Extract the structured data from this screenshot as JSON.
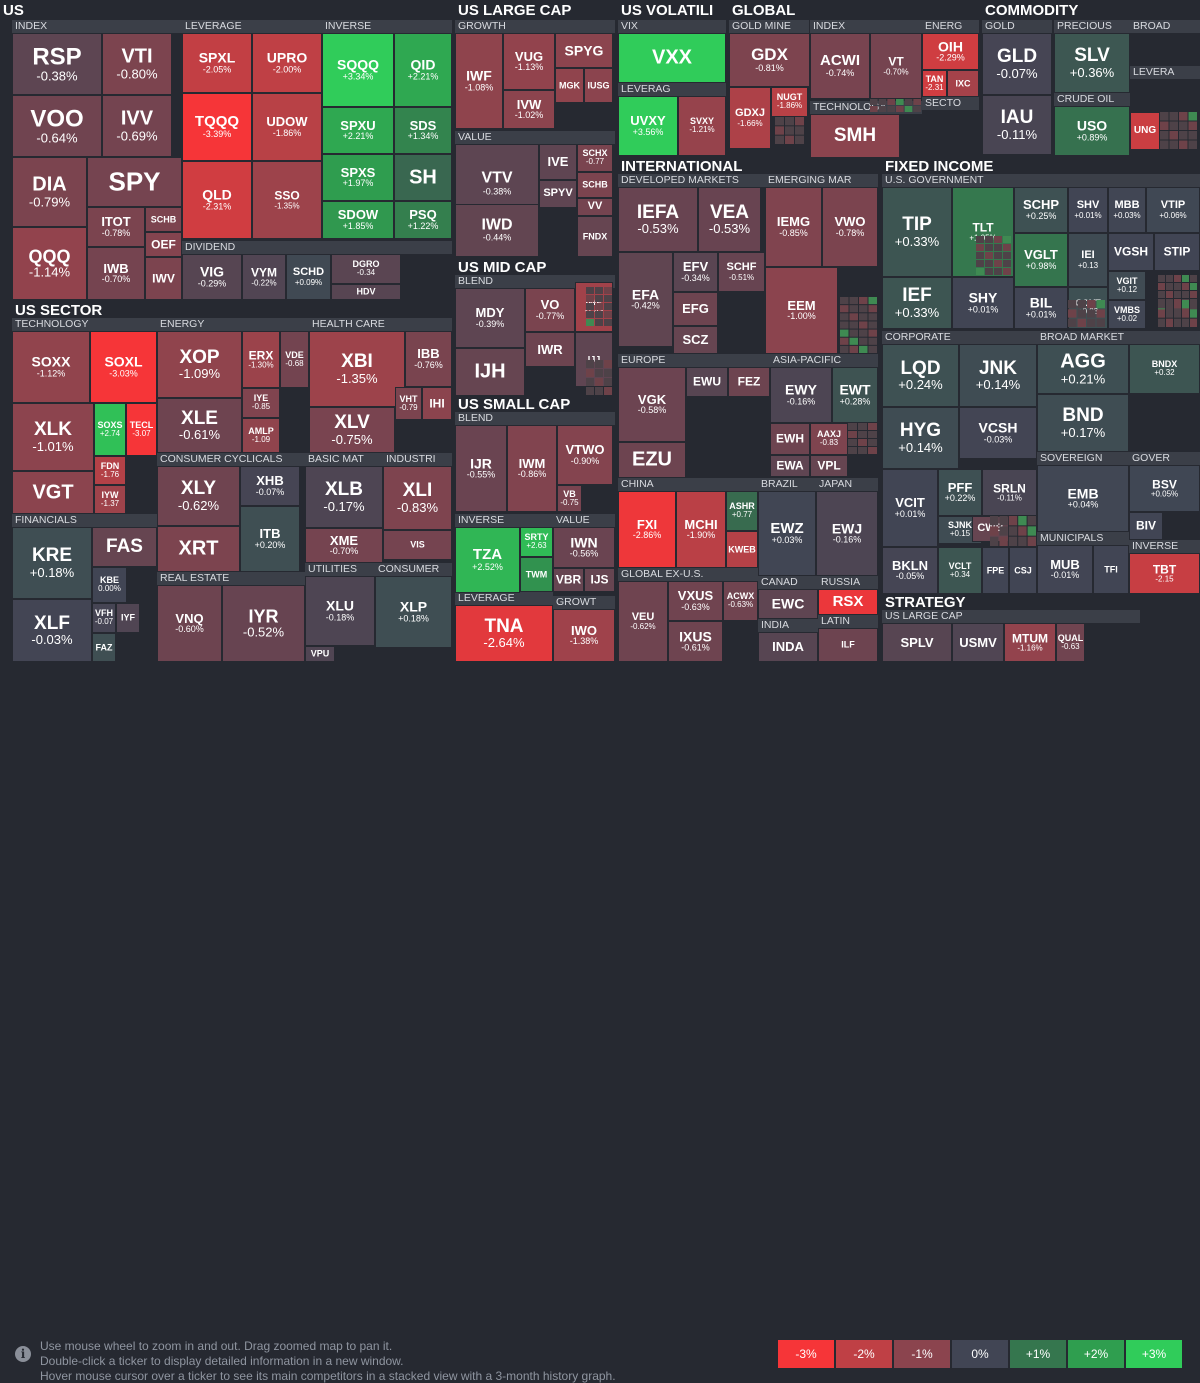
{
  "footer": {
    "help_lines": [
      "Use mouse wheel to zoom in and out. Drag zoomed map to pan it.",
      "Double-click a ticker to display detailed information in a new window.",
      "Hover mouse cursor over a ticker to see its main competitors in a stacked view with a 3-month history graph."
    ],
    "legend": [
      {
        "label": "-3%",
        "color": "#f63538"
      },
      {
        "label": "-2%",
        "color": "#bf4045"
      },
      {
        "label": "-1%",
        "color": "#8b444e"
      },
      {
        "label": "0%",
        "color": "#414554"
      },
      {
        "label": "+1%",
        "color": "#35764e"
      },
      {
        "label": "+2%",
        "color": "#2f9e4f"
      },
      {
        "label": "+3%",
        "color": "#30cc5a"
      }
    ]
  },
  "sections": [
    {
      "label": "US"
    },
    {
      "label": "US LARGE CAP"
    },
    {
      "label": "US VOLATILI"
    },
    {
      "label": "GLOBAL"
    },
    {
      "label": "COMMODITY"
    },
    {
      "label": "US SECTOR"
    },
    {
      "label": "US MID CAP"
    },
    {
      "label": "INTERNATIONAL"
    },
    {
      "label": "FIXED INCOME"
    },
    {
      "label": "US SMALL CAP"
    },
    {
      "label": "STRATEGY"
    }
  ],
  "subsections": [
    {
      "label": "INDEX"
    },
    {
      "label": "LEVERAGE"
    },
    {
      "label": "INVERSE"
    },
    {
      "label": "DIVIDEND"
    },
    {
      "label": "GROWTH"
    },
    {
      "label": "VALUE"
    },
    {
      "label": "VIX"
    },
    {
      "label": "LEVERAG"
    },
    {
      "label": "GOLD MINE"
    },
    {
      "label": "INDEX"
    },
    {
      "label": "ENERG"
    },
    {
      "label": "SECTO"
    },
    {
      "label": "TECHNOLOGY"
    },
    {
      "label": "GOLD"
    },
    {
      "label": "PRECIOUS"
    },
    {
      "label": "BROAD"
    },
    {
      "label": "LEVERA"
    },
    {
      "label": "CRUDE OIL"
    },
    {
      "label": "TECHNOLOGY"
    },
    {
      "label": "ENERGY"
    },
    {
      "label": "HEALTH CARE"
    },
    {
      "label": "FINANCIALS"
    },
    {
      "label": "CONSUMER CYCLICALS"
    },
    {
      "label": "BASIC MAT"
    },
    {
      "label": "INDUSTRI"
    },
    {
      "label": "REAL ESTATE"
    },
    {
      "label": "UTILITIES"
    },
    {
      "label": "CONSUMER"
    },
    {
      "label": "BLEND"
    },
    {
      "label": "BLEND"
    },
    {
      "label": "INVERSE"
    },
    {
      "label": "VALUE"
    },
    {
      "label": "LEVERAGE"
    },
    {
      "label": "GROWT"
    },
    {
      "label": "DEVELOPED MARKETS"
    },
    {
      "label": "EMERGING MAR"
    },
    {
      "label": "EUROPE"
    },
    {
      "label": "ASIA-PACIFIC"
    },
    {
      "label": "CHINA"
    },
    {
      "label": "BRAZIL"
    },
    {
      "label": "JAPAN"
    },
    {
      "label": "GLOBAL EX-U.S."
    },
    {
      "label": "CANAD"
    },
    {
      "label": "RUSSIA"
    },
    {
      "label": "INDIA"
    },
    {
      "label": "LATIN"
    },
    {
      "label": "U.S. GOVERNMENT"
    },
    {
      "label": "CORPORATE"
    },
    {
      "label": "BROAD MARKET"
    },
    {
      "label": "SOVEREIGN"
    },
    {
      "label": "GOVER"
    },
    {
      "label": "MUNICIPALS"
    },
    {
      "label": "INVERSE"
    },
    {
      "label": "US LARGE CAP"
    }
  ],
  "chart_data": {
    "type": "heatmap",
    "color_scale": {
      "min": -3,
      "max": 3,
      "unit": "%"
    },
    "tiles": [
      {
        "t": "RSP",
        "v": -0.38,
        "p": "-0.38%"
      },
      {
        "t": "VTI",
        "v": -0.8,
        "p": "-0.80%"
      },
      {
        "t": "VOO",
        "v": -0.64,
        "p": "-0.64%"
      },
      {
        "t": "IVV",
        "v": -0.69,
        "p": "-0.69%"
      },
      {
        "t": "DIA",
        "v": -0.79,
        "p": "-0.79%"
      },
      {
        "t": "SPY",
        "v": -0.7,
        "p": ""
      },
      {
        "t": "QQQ",
        "v": -1.14,
        "p": "-1.14%"
      },
      {
        "t": "ITOT",
        "v": -0.78,
        "p": "-0.78%"
      },
      {
        "t": "SCHB",
        "v": -0.8,
        "p": ""
      },
      {
        "t": "OEF",
        "v": -0.9,
        "p": ""
      },
      {
        "t": "IWB",
        "v": -0.7,
        "p": "-0.70%"
      },
      {
        "t": "IWV",
        "v": -0.8,
        "p": ""
      },
      {
        "t": "SPXL",
        "v": -2.05,
        "p": "-2.05%"
      },
      {
        "t": "UPRO",
        "v": -2.0,
        "p": "-2.00%"
      },
      {
        "t": "TQQQ",
        "v": -3.39,
        "p": "-3.39%"
      },
      {
        "t": "UDOW",
        "v": -1.86,
        "p": "-1.86%"
      },
      {
        "t": "QLD",
        "v": -2.31,
        "p": "-2.31%"
      },
      {
        "t": "SSO",
        "v": -1.35,
        "p": "-1.35%"
      },
      {
        "t": "SQQQ",
        "v": 3.34,
        "p": "+3.34%"
      },
      {
        "t": "QID",
        "v": 2.21,
        "p": "+2.21%"
      },
      {
        "t": "SPXU",
        "v": 2.21,
        "p": "+2.21%"
      },
      {
        "t": "SDS",
        "v": 1.34,
        "p": "+1.34%"
      },
      {
        "t": "SPXS",
        "v": 1.97,
        "p": "+1.97%"
      },
      {
        "t": "SH",
        "v": 0.7,
        "p": ""
      },
      {
        "t": "SDOW",
        "v": 1.85,
        "p": "+1.85%"
      },
      {
        "t": "PSQ",
        "v": 1.22,
        "p": "+1.22%"
      },
      {
        "t": "VIG",
        "v": -0.29,
        "p": "-0.29%"
      },
      {
        "t": "VYM",
        "v": -0.22,
        "p": "-0.22%"
      },
      {
        "t": "SCHD",
        "v": 0.09,
        "p": "+0.09%"
      },
      {
        "t": "DGRO",
        "v": -0.34,
        "p": "-0.34"
      },
      {
        "t": "HDV",
        "v": -0.3,
        "p": ""
      },
      {
        "t": "IWF",
        "v": -1.08,
        "p": "-1.08%"
      },
      {
        "t": "VUG",
        "v": -1.13,
        "p": "-1.13%"
      },
      {
        "t": "SPYG",
        "v": -1.0,
        "p": ""
      },
      {
        "t": "MGK",
        "v": -1.1,
        "p": ""
      },
      {
        "t": "IUSG",
        "v": -1.0,
        "p": ""
      },
      {
        "t": "IVW",
        "v": -1.02,
        "p": "-1.02%"
      },
      {
        "t": "VTV",
        "v": -0.38,
        "p": "-0.38%"
      },
      {
        "t": "IVE",
        "v": -0.4,
        "p": ""
      },
      {
        "t": "SCHX",
        "v": -0.77,
        "p": "-0.77"
      },
      {
        "t": "SCHB",
        "v": -0.8,
        "p": ""
      },
      {
        "t": "SPYV",
        "v": -0.4,
        "p": ""
      },
      {
        "t": "VV",
        "v": -0.7,
        "p": ""
      },
      {
        "t": "IWD",
        "v": -0.44,
        "p": "-0.44%"
      },
      {
        "t": "FNDX",
        "v": -0.5,
        "p": ""
      },
      {
        "t": "VXX",
        "v": 3.2,
        "p": ""
      },
      {
        "t": "UVXY",
        "v": 3.56,
        "p": "+3.56%"
      },
      {
        "t": "SVXY",
        "v": -1.21,
        "p": "-1.21%"
      },
      {
        "t": "GDX",
        "v": -0.81,
        "p": "-0.81%"
      },
      {
        "t": "GDXJ",
        "v": -1.66,
        "p": "-1.66%"
      },
      {
        "t": "NUGT",
        "v": -1.86,
        "p": "-1.86%"
      },
      {
        "t": "ACWI",
        "v": -0.74,
        "p": "-0.74%"
      },
      {
        "t": "VT",
        "v": -0.7,
        "p": "-0.70%"
      },
      {
        "t": "OIH",
        "v": -2.29,
        "p": "-2.29%"
      },
      {
        "t": "TAN",
        "v": -2.31,
        "p": "-2.31"
      },
      {
        "t": "IXC",
        "v": -1.5,
        "p": ""
      },
      {
        "t": "SMH",
        "v": -1.0,
        "p": ""
      },
      {
        "t": "GLD",
        "v": -0.07,
        "p": "-0.07%"
      },
      {
        "t": "IAU",
        "v": -0.11,
        "p": "-0.11%"
      },
      {
        "t": "SLV",
        "v": 0.36,
        "p": "+0.36%"
      },
      {
        "t": "USO",
        "v": 0.89,
        "p": "+0.89%"
      },
      {
        "t": "UNG",
        "v": -2.2,
        "p": ""
      },
      {
        "t": "SOXX",
        "v": -1.12,
        "p": "-1.12%"
      },
      {
        "t": "SOXL",
        "v": -3.03,
        "p": "-3.03%"
      },
      {
        "t": "XLK",
        "v": -1.01,
        "p": "-1.01%"
      },
      {
        "t": "SOXS",
        "v": 2.74,
        "p": "+2.74"
      },
      {
        "t": "TECL",
        "v": -3.07,
        "p": "-3.07"
      },
      {
        "t": "FDN",
        "v": -1.76,
        "p": "-1.76"
      },
      {
        "t": "IYW",
        "v": -1.37,
        "p": "-1.37"
      },
      {
        "t": "VGT",
        "v": -1.0,
        "p": ""
      },
      {
        "t": "XOP",
        "v": -1.09,
        "p": "-1.09%"
      },
      {
        "t": "ERX",
        "v": -1.3,
        "p": "-1.30%"
      },
      {
        "t": "VDE",
        "v": -0.68,
        "p": "-0.68"
      },
      {
        "t": "XLE",
        "v": -0.61,
        "p": "-0.61%"
      },
      {
        "t": "IYE",
        "v": -0.85,
        "p": "-0.85"
      },
      {
        "t": "AMLP",
        "v": -1.09,
        "p": "-1.09"
      },
      {
        "t": "XBI",
        "v": -1.35,
        "p": "-1.35%"
      },
      {
        "t": "IBB",
        "v": -0.76,
        "p": "-0.76%"
      },
      {
        "t": "XLV",
        "v": -0.75,
        "p": "-0.75%"
      },
      {
        "t": "VHT",
        "v": -0.79,
        "p": "-0.79"
      },
      {
        "t": "IHI",
        "v": -1.0,
        "p": ""
      },
      {
        "t": "KRE",
        "v": 0.18,
        "p": "+0.18%"
      },
      {
        "t": "FAS",
        "v": -0.5,
        "p": ""
      },
      {
        "t": "KBE",
        "v": 0.0,
        "p": "0.00%"
      },
      {
        "t": "XLF",
        "v": -0.03,
        "p": "-0.03%"
      },
      {
        "t": "VFH",
        "v": -0.07,
        "p": "-0.07"
      },
      {
        "t": "IYF",
        "v": -0.2,
        "p": ""
      },
      {
        "t": "FAZ",
        "v": 0.2,
        "p": ""
      },
      {
        "t": "XLY",
        "v": -0.62,
        "p": "-0.62%"
      },
      {
        "t": "XHB",
        "v": -0.07,
        "p": "-0.07%"
      },
      {
        "t": "XRT",
        "v": -0.8,
        "p": ""
      },
      {
        "t": "ITB",
        "v": 0.2,
        "p": "+0.20%"
      },
      {
        "t": "XLB",
        "v": -0.17,
        "p": "-0.17%"
      },
      {
        "t": "XME",
        "v": -0.7,
        "p": "-0.70%"
      },
      {
        "t": "XLI",
        "v": -0.83,
        "p": "-0.83%"
      },
      {
        "t": "VIS",
        "v": -0.7,
        "p": ""
      },
      {
        "t": "VNQ",
        "v": -0.6,
        "p": "-0.60%"
      },
      {
        "t": "IYR",
        "v": -0.52,
        "p": "-0.52%"
      },
      {
        "t": "XLU",
        "v": -0.18,
        "p": "-0.18%"
      },
      {
        "t": "VPU",
        "v": -0.2,
        "p": ""
      },
      {
        "t": "XLP",
        "v": 0.18,
        "p": "+0.18%"
      },
      {
        "t": "MDY",
        "v": -0.39,
        "p": "-0.39%"
      },
      {
        "t": "VO",
        "v": -0.77,
        "p": "-0.77%"
      },
      {
        "t": "IWP",
        "v": -1.43,
        "p": "-1.43"
      },
      {
        "t": "IWR",
        "v": -0.6,
        "p": ""
      },
      {
        "t": "IJH",
        "v": -0.5,
        "p": ""
      },
      {
        "t": "IJJ",
        "v": -0.4,
        "p": ""
      },
      {
        "t": "IJR",
        "v": -0.55,
        "p": "-0.55%"
      },
      {
        "t": "IWM",
        "v": -0.86,
        "p": "-0.86%"
      },
      {
        "t": "VTWO",
        "v": -0.9,
        "p": "-0.90%"
      },
      {
        "t": "VB",
        "v": -0.75,
        "p": "-0.75"
      },
      {
        "t": "TZA",
        "v": 2.52,
        "p": "+2.52%"
      },
      {
        "t": "SRTY",
        "v": 2.63,
        "p": "+2.63"
      },
      {
        "t": "TWM",
        "v": 1.7,
        "p": ""
      },
      {
        "t": "IWN",
        "v": -0.56,
        "p": "-0.56%"
      },
      {
        "t": "VBR",
        "v": -0.5,
        "p": ""
      },
      {
        "t": "IJS",
        "v": -0.5,
        "p": ""
      },
      {
        "t": "TNA",
        "v": -2.64,
        "p": "-2.64%"
      },
      {
        "t": "IWO",
        "v": -1.38,
        "p": "-1.38%"
      },
      {
        "t": "IEFA",
        "v": -0.53,
        "p": "-0.53%"
      },
      {
        "t": "VEA",
        "v": -0.53,
        "p": "-0.53%"
      },
      {
        "t": "EFA",
        "v": -0.42,
        "p": "-0.42%"
      },
      {
        "t": "EFV",
        "v": -0.34,
        "p": "-0.34%"
      },
      {
        "t": "SCHF",
        "v": -0.51,
        "p": "-0.51%"
      },
      {
        "t": "EFG",
        "v": -0.6,
        "p": ""
      },
      {
        "t": "SCZ",
        "v": -0.5,
        "p": ""
      },
      {
        "t": "IEMG",
        "v": -0.85,
        "p": "-0.85%"
      },
      {
        "t": "VWO",
        "v": -0.78,
        "p": "-0.78%"
      },
      {
        "t": "EEM",
        "v": -1.0,
        "p": "-1.00%"
      },
      {
        "t": "VGK",
        "v": -0.58,
        "p": "-0.58%"
      },
      {
        "t": "EWU",
        "v": -0.3,
        "p": ""
      },
      {
        "t": "FEZ",
        "v": -0.6,
        "p": ""
      },
      {
        "t": "EZU",
        "v": -0.6,
        "p": ""
      },
      {
        "t": "EWY",
        "v": -0.16,
        "p": "-0.16%"
      },
      {
        "t": "EWT",
        "v": 0.28,
        "p": "+0.28%"
      },
      {
        "t": "EWH",
        "v": -0.6,
        "p": ""
      },
      {
        "t": "AAXJ",
        "v": -0.83,
        "p": "-0.83"
      },
      {
        "t": "EWA",
        "v": -0.4,
        "p": ""
      },
      {
        "t": "VPL",
        "v": -0.5,
        "p": ""
      },
      {
        "t": "FXI",
        "v": -2.86,
        "p": "-2.86%"
      },
      {
        "t": "MCHI",
        "v": -1.9,
        "p": "-1.90%"
      },
      {
        "t": "ASHR",
        "v": 0.77,
        "p": "+0.77"
      },
      {
        "t": "KWEB",
        "v": -1.8,
        "p": ""
      },
      {
        "t": "EWZ",
        "v": 0.03,
        "p": "+0.03%"
      },
      {
        "t": "EWJ",
        "v": -0.16,
        "p": "-0.16%"
      },
      {
        "t": "VEU",
        "v": -0.62,
        "p": "-0.62%"
      },
      {
        "t": "VXUS",
        "v": -0.63,
        "p": "-0.63%"
      },
      {
        "t": "ACWX",
        "v": -0.63,
        "p": "-0.63%"
      },
      {
        "t": "IXUS",
        "v": -0.61,
        "p": "-0.61%"
      },
      {
        "t": "EWC",
        "v": -0.4,
        "p": ""
      },
      {
        "t": "RSX",
        "v": -2.8,
        "p": ""
      },
      {
        "t": "INDA",
        "v": -0.3,
        "p": ""
      },
      {
        "t": "ILF",
        "v": -0.6,
        "p": ""
      },
      {
        "t": "TIP",
        "v": 0.33,
        "p": "+0.33%"
      },
      {
        "t": "TLT",
        "v": 1.05,
        "p": "+1.05%"
      },
      {
        "t": "SCHP",
        "v": 0.25,
        "p": "+0.25%"
      },
      {
        "t": "SHV",
        "v": 0.01,
        "p": "+0.01%"
      },
      {
        "t": "MBB",
        "v": 0.03,
        "p": "+0.03%"
      },
      {
        "t": "VTIP",
        "v": 0.06,
        "p": "+0.06%"
      },
      {
        "t": "IEF",
        "v": 0.33,
        "p": "+0.33%"
      },
      {
        "t": "VGLT",
        "v": 0.98,
        "p": "+0.98%"
      },
      {
        "t": "IEI",
        "v": 0.13,
        "p": "+0.13"
      },
      {
        "t": "VGSH",
        "v": 0.0,
        "p": ""
      },
      {
        "t": "STIP",
        "v": 0.0,
        "p": ""
      },
      {
        "t": "SHY",
        "v": 0.01,
        "p": "+0.01%"
      },
      {
        "t": "BIL",
        "v": 0.01,
        "p": "+0.01%"
      },
      {
        "t": "GOVT",
        "v": 0.23,
        "p": "+0.23"
      },
      {
        "t": "VGIT",
        "v": 0.12,
        "p": "+0.12"
      },
      {
        "t": "VMBS",
        "v": 0.02,
        "p": "+0.02"
      },
      {
        "t": "LQD",
        "v": 0.24,
        "p": "+0.24%"
      },
      {
        "t": "JNK",
        "v": 0.14,
        "p": "+0.14%"
      },
      {
        "t": "HYG",
        "v": 0.14,
        "p": "+0.14%"
      },
      {
        "t": "VCSH",
        "v": -0.03,
        "p": "-0.03%"
      },
      {
        "t": "VCIT",
        "v": 0.01,
        "p": "+0.01%"
      },
      {
        "t": "PFF",
        "v": 0.22,
        "p": "+0.22%"
      },
      {
        "t": "SRLN",
        "v": -0.11,
        "p": "-0.11%"
      },
      {
        "t": "SJNK",
        "v": 0.15,
        "p": "+0.15"
      },
      {
        "t": "CWB",
        "v": -0.5,
        "p": ""
      },
      {
        "t": "BKLN",
        "v": -0.05,
        "p": "-0.05%"
      },
      {
        "t": "VCLT",
        "v": 0.34,
        "p": "+0.34"
      },
      {
        "t": "FPE",
        "v": 0.0,
        "p": ""
      },
      {
        "t": "CSJ",
        "v": 0.0,
        "p": ""
      },
      {
        "t": "AGG",
        "v": 0.21,
        "p": "+0.21%"
      },
      {
        "t": "BNDX",
        "v": 0.32,
        "p": "+0.32"
      },
      {
        "t": "BND",
        "v": 0.17,
        "p": "+0.17%"
      },
      {
        "t": "EMB",
        "v": 0.04,
        "p": "+0.04%"
      },
      {
        "t": "BSV",
        "v": 0.05,
        "p": "+0.05%"
      },
      {
        "t": "BIV",
        "v": 0.0,
        "p": ""
      },
      {
        "t": "MUB",
        "v": -0.01,
        "p": "-0.01%"
      },
      {
        "t": "TFI",
        "v": 0.0,
        "p": ""
      },
      {
        "t": "TBT",
        "v": -2.15,
        "p": "-2.15"
      },
      {
        "t": "SPLV",
        "v": -0.3,
        "p": ""
      },
      {
        "t": "USMV",
        "v": -0.2,
        "p": ""
      },
      {
        "t": "MTUM",
        "v": -1.16,
        "p": "-1.16%"
      },
      {
        "t": "QUAL",
        "v": -0.63,
        "p": "-0.63"
      }
    ]
  }
}
